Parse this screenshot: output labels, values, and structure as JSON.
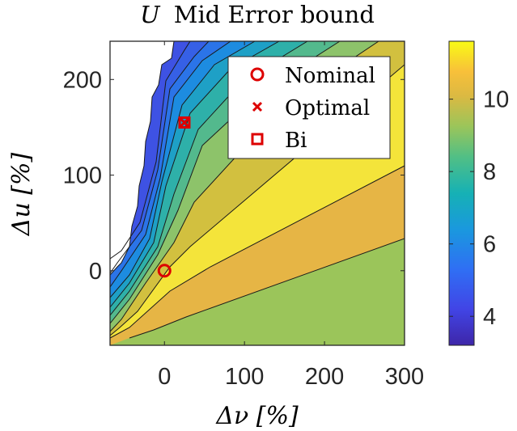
{
  "chart_data": {
    "type": "contour",
    "title": "U Mid Error bound",
    "title_parts": {
      "symbol": "U",
      "text": "Mid Error bound"
    },
    "xlabel": "Δν [%]",
    "ylabel": "Δu [%]",
    "xlim": [
      -68,
      300
    ],
    "ylim": [
      -78,
      240
    ],
    "xticks": [
      0,
      100,
      200,
      300
    ],
    "yticks": [
      0,
      100,
      200
    ],
    "xtick_labels": [
      "0",
      "100",
      "200",
      "300"
    ],
    "ytick_labels": [
      "0",
      "100",
      "200"
    ],
    "colorbar": {
      "limits": [
        3.2,
        11.6
      ],
      "ticks": [
        4,
        6,
        8,
        10
      ],
      "tick_labels": [
        "4",
        "6",
        "8",
        "10"
      ],
      "colormap": "parula"
    },
    "contour_levels": [
      3.6,
      4.0,
      4.4,
      4.8,
      5.2,
      5.6,
      6.0,
      6.5,
      7.0,
      7.6,
      8.2,
      8.8,
      9.5,
      10.2,
      10.9
    ],
    "regions": [
      {
        "value": 9.0,
        "color": "#9bc55a"
      },
      {
        "value": 10.2,
        "color": "#e6b545"
      },
      {
        "value": 11.0,
        "color": "#f4e43a"
      },
      {
        "value": 9.6,
        "color": "#d2c03f"
      },
      {
        "value": 8.6,
        "color": "#8dc36a"
      },
      {
        "value": 7.9,
        "color": "#53b98d"
      },
      {
        "value": 7.2,
        "color": "#2eb0a9"
      },
      {
        "value": 6.6,
        "color": "#1ea0c6"
      },
      {
        "value": 6.0,
        "color": "#1d8ce0"
      },
      {
        "value": 5.5,
        "color": "#2b74e8"
      },
      {
        "value": 5.0,
        "color": "#3660e6"
      },
      {
        "value": 4.6,
        "color": "#3e52e3"
      }
    ],
    "series": [
      {
        "name": "Nominal",
        "marker": "circle",
        "points": [
          [
            0,
            0
          ]
        ]
      },
      {
        "name": "Optimal",
        "marker": "x",
        "points": [
          [
            25,
            155
          ]
        ]
      },
      {
        "name": "Bi",
        "marker": "square",
        "points": [
          [
            25,
            155
          ]
        ]
      }
    ],
    "marker_color": "#dd0000",
    "legend_placement": "top-right",
    "grid": false
  }
}
